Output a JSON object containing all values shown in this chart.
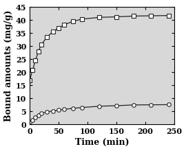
{
  "upper_x": [
    0,
    5,
    10,
    15,
    20,
    30,
    40,
    50,
    60,
    75,
    90,
    120,
    150,
    180,
    210,
    240
  ],
  "upper_y": [
    17.0,
    20.8,
    24.5,
    28.0,
    30.5,
    33.5,
    35.5,
    37.0,
    38.2,
    39.5,
    40.3,
    41.0,
    41.2,
    41.5,
    41.6,
    41.7
  ],
  "lower_x": [
    0,
    5,
    10,
    15,
    20,
    30,
    40,
    50,
    60,
    75,
    90,
    120,
    150,
    180,
    210,
    240
  ],
  "lower_y": [
    1.0,
    1.8,
    2.8,
    3.5,
    4.2,
    4.8,
    5.2,
    5.5,
    5.8,
    6.2,
    6.5,
    7.0,
    7.2,
    7.5,
    7.55,
    7.6
  ],
  "xlabel": "Time (min)",
  "ylabel": "Bound amounts (mg/g)",
  "xlim": [
    0,
    250
  ],
  "ylim": [
    0,
    45
  ],
  "xticks": [
    0,
    50,
    100,
    150,
    200,
    250
  ],
  "yticks": [
    0,
    5,
    10,
    15,
    20,
    25,
    30,
    35,
    40,
    45
  ],
  "upper_marker": "s",
  "lower_marker": "o",
  "marker_size": 4,
  "line_color": "#222222",
  "bg_color": "#e8e8e8",
  "plot_bg": "#e8e8e8",
  "xlabel_fontsize": 9,
  "ylabel_fontsize": 9,
  "tick_fontsize": 8
}
